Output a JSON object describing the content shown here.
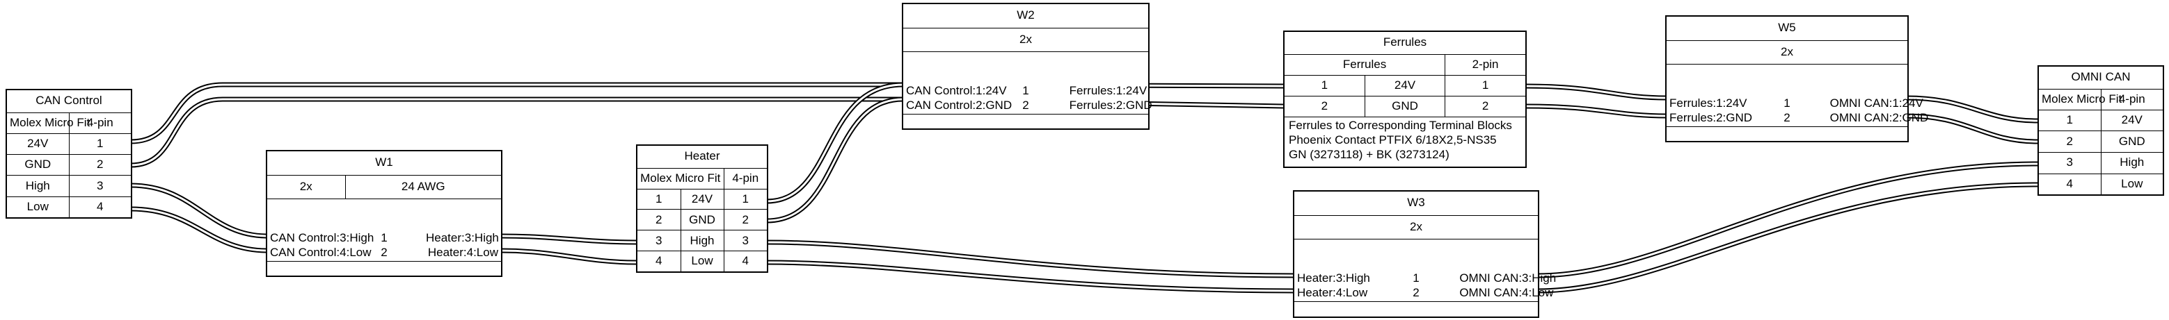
{
  "connectors": {
    "can_control": {
      "title": "CAN Control",
      "type": "Molex Micro Fit",
      "pincount": "4-pin",
      "pins": [
        {
          "label": "24V",
          "pin": "1"
        },
        {
          "label": "GND",
          "pin": "2"
        },
        {
          "label": "High",
          "pin": "3"
        },
        {
          "label": "Low",
          "pin": "4"
        }
      ]
    },
    "heater": {
      "title": "Heater",
      "type": "Molex Micro Fit",
      "pincount": "4-pin",
      "pins": [
        {
          "pin": "1",
          "label": "24V"
        },
        {
          "pin": "2",
          "label": "GND"
        },
        {
          "pin": "3",
          "label": "High"
        },
        {
          "pin": "4",
          "label": "Low"
        }
      ]
    },
    "ferrules": {
      "title": "Ferrules",
      "type": "Ferrules",
      "pincount": "2-pin",
      "pins": [
        {
          "pin": "1",
          "label": "24V"
        },
        {
          "pin": "2",
          "label": "GND"
        }
      ],
      "notes": [
        "Ferrules to Corresponding Terminal Blocks",
        "Phoenix Contact PTFIX 6/18X2,5-NS35",
        "GN (3273118) + BK (3273124)"
      ]
    },
    "omni_can": {
      "title": "OMNI CAN",
      "type": "Molex Micro Fit",
      "pincount": "4-pin",
      "pins": [
        {
          "pin": "1",
          "label": "24V"
        },
        {
          "pin": "2",
          "label": "GND"
        },
        {
          "pin": "3",
          "label": "High"
        },
        {
          "pin": "4",
          "label": "Low"
        }
      ]
    }
  },
  "cables": {
    "w1": {
      "title": "W1",
      "count": "2x",
      "gauge": "24 AWG",
      "wires": [
        {
          "from": "CAN Control:3:High",
          "num": "1",
          "to": "Heater:3:High"
        },
        {
          "from": "CAN Control:4:Low",
          "num": "2",
          "to": "Heater:4:Low"
        }
      ]
    },
    "w2": {
      "title": "W2",
      "count": "2x",
      "wires": [
        {
          "from": "CAN Control:1:24V",
          "num": "1",
          "to": "Ferrules:1:24V"
        },
        {
          "from": "CAN Control:2:GND",
          "num": "2",
          "to": "Ferrules:2:GND"
        }
      ]
    },
    "w3": {
      "title": "W3",
      "count": "2x",
      "wires": [
        {
          "from": "Heater:3:High",
          "num": "1",
          "to": "OMNI CAN:3:High"
        },
        {
          "from": "Heater:4:Low",
          "num": "2",
          "to": "OMNI CAN:4:Low"
        }
      ]
    },
    "w5": {
      "title": "W5",
      "count": "2x",
      "wires": [
        {
          "from": "Ferrules:1:24V",
          "num": "1",
          "to": "OMNI CAN:1:24V"
        },
        {
          "from": "Ferrules:2:GND",
          "num": "2",
          "to": "OMNI CAN:2:GND"
        }
      ]
    }
  }
}
